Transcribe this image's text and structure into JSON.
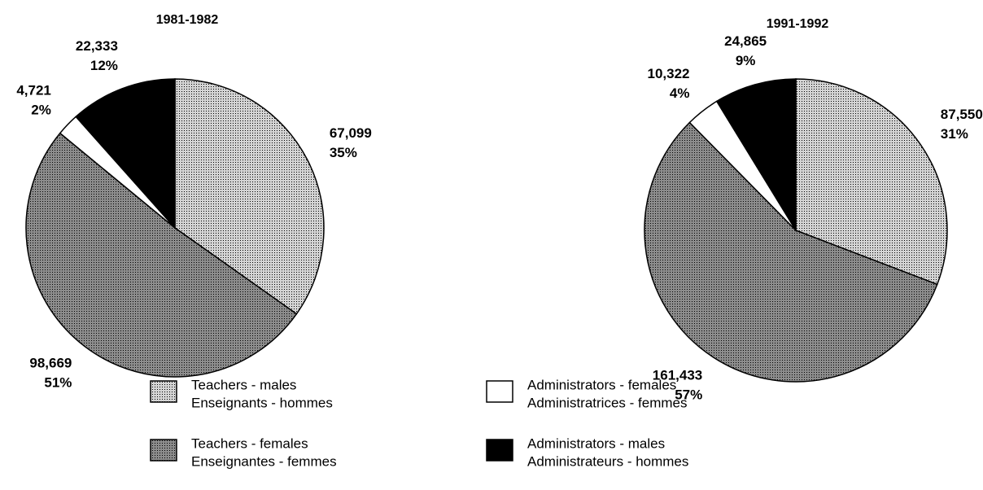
{
  "chart_data": [
    {
      "type": "pie",
      "title": "1981-1982",
      "categories": [
        [
          "Teachers - males",
          "Enseignants  - hommes"
        ],
        [
          "Teachers - females",
          "Enseignantes  - femmes"
        ],
        [
          "Administrators - females",
          "Administratrices - femmes"
        ],
        [
          "Administrators - males",
          "Administrateurs - hommes"
        ]
      ],
      "values": [
        67099,
        98669,
        4721,
        22333
      ],
      "value_labels": [
        "67,099",
        "98,669",
        "4,721",
        "22,333"
      ],
      "percent_labels": [
        "35%",
        "51%",
        "2%",
        "12%"
      ],
      "colors": [
        "#d4d4d4",
        "#8c8c8c",
        "#ffffff",
        "#000000"
      ]
    },
    {
      "type": "pie",
      "title": "1991-1992",
      "categories": [
        [
          "Teachers - males",
          "Enseignants  - hommes"
        ],
        [
          "Teachers - females",
          "Enseignantes  - femmes"
        ],
        [
          "Administrators - females",
          "Administratrices - femmes"
        ],
        [
          "Administrators - males",
          "Administrateurs - hommes"
        ]
      ],
      "values": [
        87550,
        161433,
        10322,
        24865
      ],
      "value_labels": [
        "87,550",
        "161,433",
        "10,322",
        "24,865"
      ],
      "percent_labels": [
        "31%",
        "57%",
        "4%",
        "9%"
      ],
      "colors": [
        "#d4d4d4",
        "#8c8c8c",
        "#ffffff",
        "#000000"
      ]
    }
  ]
}
